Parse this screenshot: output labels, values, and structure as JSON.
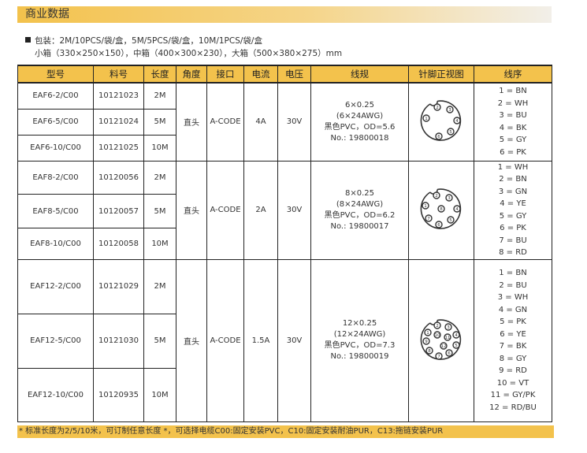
{
  "section_title": "商业数据",
  "packaging": {
    "line1": "包装：2M/10PCS/袋/盒，5M/5PCS/袋/盒，10M/1PCS/袋/盒",
    "line2": "小箱（330×250×150），中箱（400×300×230），大箱（500×380×275）mm"
  },
  "table": {
    "headers": [
      "型号",
      "料号",
      "长度",
      "角度",
      "接口",
      "电流",
      "电压",
      "线规",
      "针脚正视图",
      "线序"
    ],
    "groups": [
      {
        "rows": [
          {
            "model": "EAF6-2/C00",
            "part": "10121023",
            "length": "2M"
          },
          {
            "model": "EAF6-5/C00",
            "part": "10121024",
            "length": "5M"
          },
          {
            "model": "EAF6-10/C00",
            "part": "10121025",
            "length": "10M"
          }
        ],
        "angle": "直头",
        "interface": "A-CODE",
        "current": "4A",
        "voltage": "30V",
        "spec": [
          "6×0.25",
          "(6×24AWG)",
          "黑色PVC，OD=5.6",
          "No.: 19800018"
        ],
        "pins": 6,
        "wires": [
          "1 = BN",
          "2 = WH",
          "3 = BU",
          "4 = BK",
          "5 = GY",
          "6 = PK"
        ]
      },
      {
        "rows": [
          {
            "model": "EAF8-2/C00",
            "part": "10120056",
            "length": "2M"
          },
          {
            "model": "EAF8-5/C00",
            "part": "10120057",
            "length": "5M"
          },
          {
            "model": "EAF8-10/C00",
            "part": "10120058",
            "length": "10M"
          }
        ],
        "angle": "直头",
        "interface": "A-CODE",
        "current": "2A",
        "voltage": "30V",
        "spec": [
          "8×0.25",
          "(8×24AWG)",
          "黑色PVC，OD=6.2",
          "No.: 19800017"
        ],
        "pins": 8,
        "wires": [
          "1 = WH",
          "2 = BN",
          "3 = GN",
          "4 = YE",
          "5 = GY",
          "6 = PK",
          "7 = BU",
          "8 = RD"
        ]
      },
      {
        "rows": [
          {
            "model": "EAF12-2/C00",
            "part": "10121029",
            "length": "2M"
          },
          {
            "model": "EAF12-5/C00",
            "part": "10121030",
            "length": "5M"
          },
          {
            "model": "EAF12-10/C00",
            "part": "10120935",
            "length": "10M"
          }
        ],
        "angle": "直头",
        "interface": "A-CODE",
        "current": "1.5A",
        "voltage": "30V",
        "spec": [
          "12×0.25",
          "(12×24AWG)",
          "黑色PVC，OD=7.3",
          "No.: 19800019"
        ],
        "pins": 12,
        "wires": [
          "1 = BN",
          "2 = BU",
          "3 = WH",
          "4 = GN",
          "5 = PK",
          "6 = YE",
          "7 = BK",
          "8 = GY",
          "9 = RD",
          "10 = VT",
          "11 = GY/PK",
          "12 = RD/BU"
        ]
      }
    ]
  },
  "footnote": "* 标准长度为2/5/10米，可订制任意长度 *，可选择电缆C00:固定安装PVC，C10:固定安装耐油PUR，C13:拖链安装PUR",
  "colors": {
    "accent": "#f3c24c"
  }
}
